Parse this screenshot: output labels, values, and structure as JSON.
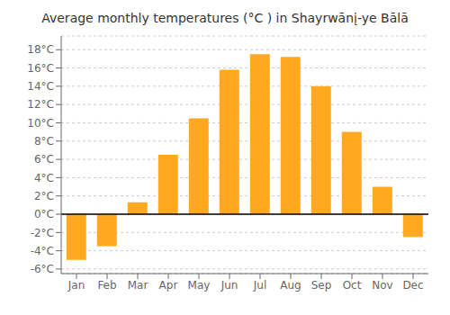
{
  "chart_data": {
    "type": "bar",
    "title": "Average monthly temperatures (°C ) in Shayrwānį-ye Bālā",
    "categories": [
      "Jan",
      "Feb",
      "Mar",
      "Apr",
      "May",
      "Jun",
      "Jul",
      "Aug",
      "Sep",
      "Oct",
      "Nov",
      "Dec"
    ],
    "values": [
      -5.0,
      -3.5,
      1.3,
      6.5,
      10.5,
      15.8,
      17.5,
      17.2,
      14.0,
      9.0,
      3.0,
      -2.5
    ],
    "color": "#FFA820",
    "ylim": [
      -6.5,
      19.5
    ],
    "yticks": [
      {
        "value": -6,
        "label": "-6°C"
      },
      {
        "value": -4,
        "label": "-4°C"
      },
      {
        "value": -2,
        "label": "-2°C"
      },
      {
        "value": 0,
        "label": "0°C"
      },
      {
        "value": 2,
        "label": "2°C"
      },
      {
        "value": 4,
        "label": "4°C"
      },
      {
        "value": 6,
        "label": "6°C"
      },
      {
        "value": 8,
        "label": "8°C"
      },
      {
        "value": 10,
        "label": "10°C"
      },
      {
        "value": 12,
        "label": "12°C"
      },
      {
        "value": 14,
        "label": "14°C"
      },
      {
        "value": 16,
        "label": "16°C"
      },
      {
        "value": 18,
        "label": "18°C"
      }
    ],
    "grid": true
  }
}
